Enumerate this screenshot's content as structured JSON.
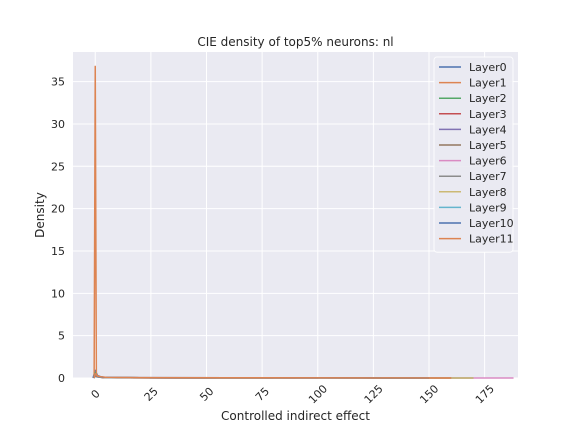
{
  "chart_data": {
    "type": "line",
    "title": "CIE density of top5% neurons: nl",
    "xlabel": "Controlled indirect effect",
    "ylabel": "Density",
    "xlim": [
      -10,
      190
    ],
    "ylim": [
      0,
      38.5
    ],
    "x_ticks": [
      0,
      25,
      50,
      75,
      100,
      125,
      150,
      175
    ],
    "y_ticks": [
      0,
      5,
      10,
      15,
      20,
      25,
      30,
      35
    ],
    "grid": true,
    "legend_position": "top-right",
    "series": [
      {
        "name": "Layer0",
        "color": "#4c72b0",
        "x": [
          -1,
          0,
          1,
          3,
          6,
          20,
          60,
          130,
          160
        ],
        "y": [
          0,
          0.9,
          0.3,
          0.1,
          0.05,
          0.03,
          0.01,
          0.005,
          0
        ]
      },
      {
        "name": "Layer1",
        "color": "#dd8452",
        "x": [
          -0.5,
          0,
          0.5,
          2,
          4,
          10,
          40,
          90
        ],
        "y": [
          0,
          36.8,
          0.4,
          0.1,
          0.05,
          0.02,
          0.01,
          0
        ]
      },
      {
        "name": "Layer2",
        "color": "#55a868",
        "x": [
          -0.5,
          0,
          0.5,
          3,
          10,
          30,
          80
        ],
        "y": [
          0,
          0.6,
          0.2,
          0.08,
          0.04,
          0.02,
          0
        ]
      },
      {
        "name": "Layer3",
        "color": "#c44e52",
        "x": [
          -0.5,
          0,
          0.5,
          3,
          10,
          30,
          80
        ],
        "y": [
          0,
          0.5,
          0.2,
          0.08,
          0.04,
          0.02,
          0
        ]
      },
      {
        "name": "Layer4",
        "color": "#8172b3",
        "x": [
          -0.5,
          0,
          0.5,
          3,
          10,
          40,
          100
        ],
        "y": [
          0,
          0.5,
          0.2,
          0.07,
          0.03,
          0.015,
          0
        ]
      },
      {
        "name": "Layer5",
        "color": "#937860",
        "x": [
          -0.5,
          0,
          0.5,
          3,
          10,
          40,
          100,
          160
        ],
        "y": [
          0,
          0.4,
          0.15,
          0.06,
          0.03,
          0.015,
          0.008,
          0
        ]
      },
      {
        "name": "Layer6",
        "color": "#da8bc3",
        "x": [
          -0.5,
          0,
          1,
          5,
          20,
          60,
          120,
          188
        ],
        "y": [
          0,
          0.4,
          0.15,
          0.06,
          0.03,
          0.015,
          0.008,
          0
        ]
      },
      {
        "name": "Layer7",
        "color": "#8c8c8c",
        "x": [
          -0.5,
          0,
          1,
          5,
          20,
          60,
          120,
          170
        ],
        "y": [
          0,
          0.4,
          0.15,
          0.06,
          0.03,
          0.015,
          0.008,
          0
        ]
      },
      {
        "name": "Layer8",
        "color": "#ccb974",
        "x": [
          -0.5,
          0,
          1,
          5,
          20,
          60,
          120,
          170
        ],
        "y": [
          0,
          0.4,
          0.15,
          0.06,
          0.03,
          0.015,
          0.008,
          0
        ]
      },
      {
        "name": "Layer9",
        "color": "#64b5cd",
        "x": [
          -0.5,
          0,
          1,
          5,
          20,
          60,
          120,
          150
        ],
        "y": [
          0,
          0.4,
          0.15,
          0.06,
          0.03,
          0.015,
          0.008,
          0
        ]
      },
      {
        "name": "Layer10",
        "color": "#4c72b0",
        "x": [
          -0.5,
          0,
          1,
          5,
          20,
          60,
          120,
          150
        ],
        "y": [
          0,
          0.4,
          0.15,
          0.08,
          0.05,
          0.03,
          0.01,
          0
        ]
      },
      {
        "name": "Layer11",
        "color": "#dd8452",
        "x": [
          -0.5,
          0,
          1,
          5,
          20,
          60,
          120,
          160
        ],
        "y": [
          0,
          0.5,
          0.2,
          0.08,
          0.05,
          0.03,
          0.01,
          0
        ]
      }
    ]
  }
}
